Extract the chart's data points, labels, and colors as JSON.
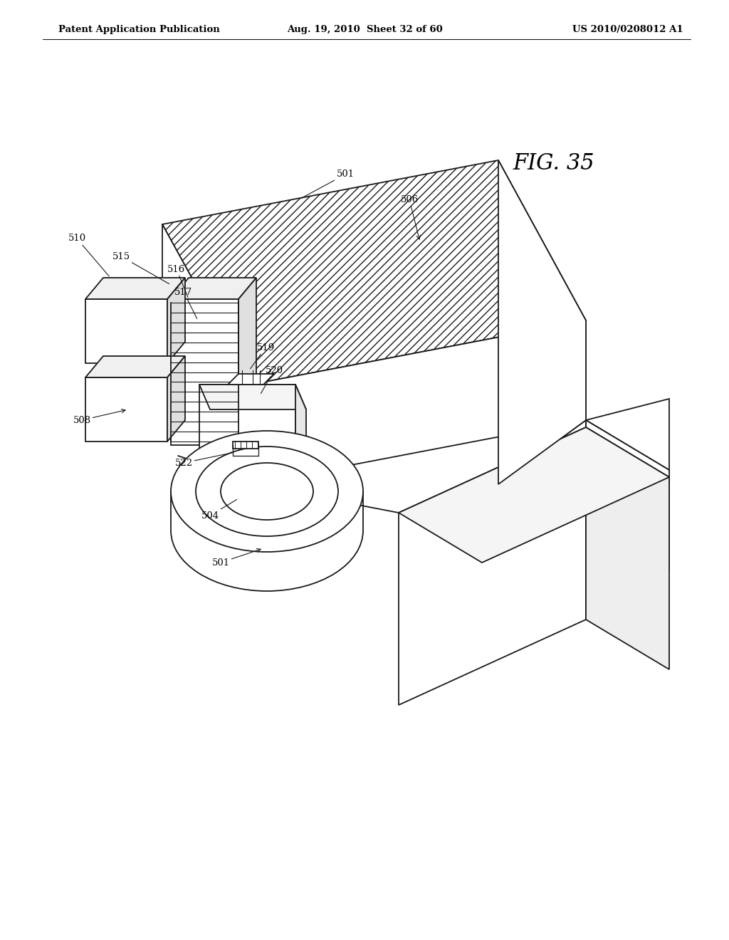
{
  "bg_color": "#ffffff",
  "header_left": "Patent Application Publication",
  "header_center": "Aug. 19, 2010  Sheet 32 of 60",
  "header_right": "US 2010/0208012 A1",
  "fig_label": "FIG. 35",
  "lw": 1.3
}
